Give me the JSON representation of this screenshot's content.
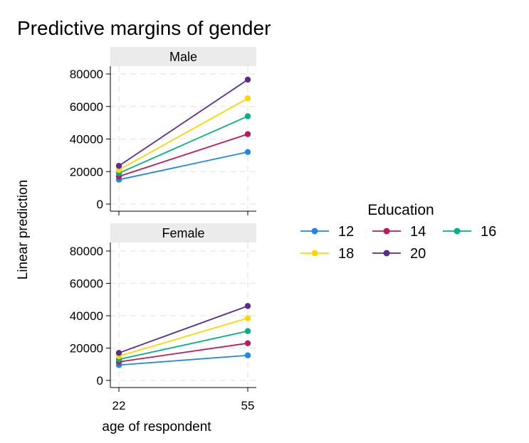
{
  "chart_data": {
    "type": "line",
    "title": "Predictive margins of gender",
    "xlabel": "age of respondent",
    "ylabel": "Linear prediction",
    "x": [
      22,
      55
    ],
    "xticks": [
      "22",
      "55"
    ],
    "ylim": [
      0,
      80000
    ],
    "yticks": [
      "0",
      "20000",
      "40000",
      "60000",
      "80000"
    ],
    "grid": true,
    "legend": {
      "title": "Education",
      "placement": "right",
      "items": [
        {
          "label": "12",
          "color": "#1e88e5"
        },
        {
          "label": "14",
          "color": "#c2185b"
        },
        {
          "label": "16",
          "color": "#00b386"
        },
        {
          "label": "18",
          "color": "#ffd700"
        },
        {
          "label": "20",
          "color": "#5b2c90"
        }
      ]
    },
    "panels": [
      {
        "label": "Male",
        "series": [
          {
            "name": "12",
            "values": [
              15000,
              32000
            ]
          },
          {
            "name": "14",
            "values": [
              17000,
              43000
            ]
          },
          {
            "name": "16",
            "values": [
              19000,
              54000
            ]
          },
          {
            "name": "18",
            "values": [
              21000,
              65000
            ]
          },
          {
            "name": "20",
            "values": [
              23500,
              76500
            ]
          }
        ]
      },
      {
        "label": "Female",
        "series": [
          {
            "name": "12",
            "values": [
              9500,
              15500
            ]
          },
          {
            "name": "14",
            "values": [
              11500,
              23000
            ]
          },
          {
            "name": "16",
            "values": [
              13000,
              30500
            ]
          },
          {
            "name": "18",
            "values": [
              15000,
              38500
            ]
          },
          {
            "name": "20",
            "values": [
              17000,
              46000
            ]
          }
        ]
      }
    ]
  }
}
